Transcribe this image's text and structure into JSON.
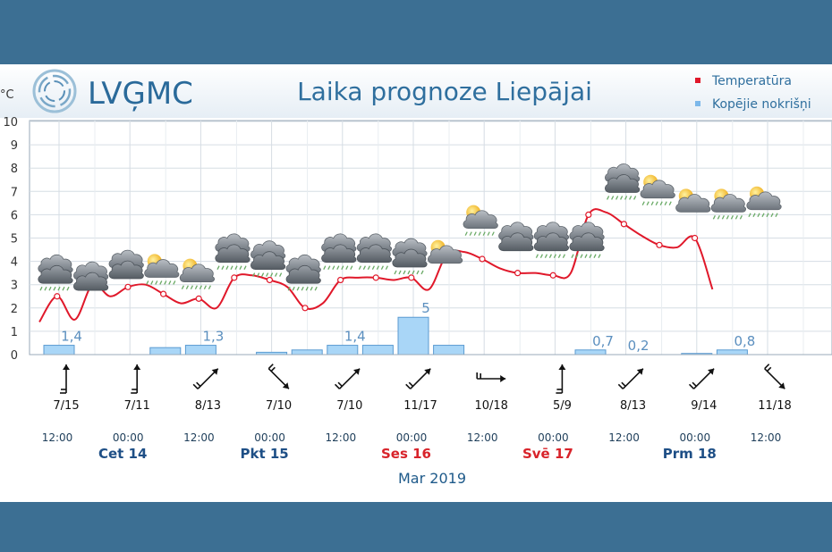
{
  "header": {
    "logo_text": "LVĢMC",
    "title": "Laika prognoze Liepājai"
  },
  "chart_data": {
    "type": "line",
    "title": "Laika prognoze Liepājai",
    "ylabel": "°C",
    "ylim": [
      0,
      10
    ],
    "yticks": [
      "0",
      "1",
      "2",
      "3",
      "4",
      "5",
      "6",
      "7",
      "8",
      "9",
      "10"
    ],
    "grid": true,
    "legend_position": "top-right",
    "colors": {
      "temperature": "#e0182a",
      "precipitation": "#a9d6f7",
      "precip_border": "#5b9bd1"
    },
    "series": [
      {
        "name": "Temperatūra",
        "kind": "line",
        "x_hours": [
          0,
          3,
          6,
          9,
          12,
          15,
          18,
          21,
          24,
          27,
          30,
          33,
          36,
          39,
          42,
          45,
          48,
          51,
          54,
          57,
          60,
          63,
          66,
          69,
          72,
          75,
          78,
          81,
          84,
          87,
          90,
          93,
          96,
          99,
          102,
          105,
          108,
          111,
          114
        ],
        "values": [
          1.4,
          2.5,
          1.5,
          3.0,
          2.5,
          2.9,
          3.0,
          2.6,
          2.2,
          2.4,
          2.0,
          3.3,
          3.4,
          3.2,
          2.9,
          2.0,
          2.2,
          3.2,
          3.3,
          3.3,
          3.2,
          3.3,
          2.8,
          4.3,
          4.4,
          4.1,
          3.7,
          3.5,
          3.5,
          3.4,
          3.5,
          6.0,
          6.1,
          5.6,
          5.1,
          4.7,
          4.6,
          5.0,
          2.8
        ]
      },
      {
        "name": "Kopējie nokrišņi",
        "kind": "bar",
        "x_hours": [
          0,
          6,
          12,
          18,
          24,
          30,
          36,
          42,
          48,
          54,
          60,
          66,
          72,
          78,
          84,
          90,
          96,
          102,
          108,
          114
        ],
        "values": [
          0.4,
          0.0,
          0.0,
          0.3,
          0.4,
          0.0,
          0.1,
          0.2,
          0.4,
          0.4,
          1.6,
          0.4,
          0.0,
          0.0,
          0.0,
          0.2,
          0.0,
          0.0,
          0.05,
          0.2
        ],
        "labels": [
          {
            "x_hour": 0,
            "text": "1,4"
          },
          {
            "x_hour": 24,
            "text": "1,3"
          },
          {
            "x_hour": 48,
            "text": "1,4"
          },
          {
            "x_hour": 60,
            "text": "5"
          },
          {
            "x_hour": 90,
            "text": "0,7"
          },
          {
            "x_hour": 96,
            "text": "0,2"
          },
          {
            "x_hour": 114,
            "text": "0,8"
          }
        ]
      }
    ],
    "weather_icons": [
      {
        "x_hour": 0,
        "y": 3.9,
        "icon": "cloud-drizzle"
      },
      {
        "x_hour": 6,
        "y": 3.6,
        "icon": "cloud"
      },
      {
        "x_hour": 12,
        "y": 4.1,
        "icon": "cloud"
      },
      {
        "x_hour": 18,
        "y": 3.7,
        "icon": "sun-cloud-rain"
      },
      {
        "x_hour": 24,
        "y": 3.5,
        "icon": "sun-cloud-rain"
      },
      {
        "x_hour": 30,
        "y": 4.8,
        "icon": "cloud-rain"
      },
      {
        "x_hour": 36,
        "y": 4.5,
        "icon": "cloud-rain"
      },
      {
        "x_hour": 42,
        "y": 3.9,
        "icon": "cloud-rain"
      },
      {
        "x_hour": 48,
        "y": 4.8,
        "icon": "cloud-rain"
      },
      {
        "x_hour": 54,
        "y": 4.8,
        "icon": "cloud-rain"
      },
      {
        "x_hour": 60,
        "y": 4.6,
        "icon": "cloud-rain"
      },
      {
        "x_hour": 66,
        "y": 4.3,
        "icon": "sun-cloud"
      },
      {
        "x_hour": 72,
        "y": 5.8,
        "icon": "sun-cloud-rain"
      },
      {
        "x_hour": 78,
        "y": 5.3,
        "icon": "cloud"
      },
      {
        "x_hour": 84,
        "y": 5.3,
        "icon": "cloud-rain"
      },
      {
        "x_hour": 90,
        "y": 5.3,
        "icon": "cloud-rain"
      },
      {
        "x_hour": 96,
        "y": 7.8,
        "icon": "cloud-rain"
      },
      {
        "x_hour": 102,
        "y": 7.1,
        "icon": "sun-cloud-rain"
      },
      {
        "x_hour": 108,
        "y": 6.5,
        "icon": "sun-cloud"
      },
      {
        "x_hour": 114,
        "y": 6.5,
        "icon": "sun-cloud-rain"
      },
      {
        "x_hour": 120,
        "y": 6.6,
        "icon": "sun-cloud-rain"
      }
    ],
    "wind": [
      {
        "x_hour": 0,
        "dir": "N",
        "label": "7/15"
      },
      {
        "x_hour": 12,
        "dir": "N",
        "label": "7/11"
      },
      {
        "x_hour": 24,
        "dir": "NE",
        "label": "8/13"
      },
      {
        "x_hour": 36,
        "dir": "SE",
        "label": "7/10"
      },
      {
        "x_hour": 48,
        "dir": "NE",
        "label": "7/10"
      },
      {
        "x_hour": 60,
        "dir": "NE",
        "label": "11/17"
      },
      {
        "x_hour": 72,
        "dir": "E",
        "label": "10/18"
      },
      {
        "x_hour": 84,
        "dir": "N",
        "label": "5/9"
      },
      {
        "x_hour": 96,
        "dir": "NE",
        "label": "8/13"
      },
      {
        "x_hour": 108,
        "dir": "NE",
        "label": "9/14"
      },
      {
        "x_hour": 120,
        "dir": "SE",
        "label": "11/18"
      }
    ],
    "time_ticks": [
      {
        "x_hour": 0,
        "label": "12:00"
      },
      {
        "x_hour": 12,
        "label": "00:00"
      },
      {
        "x_hour": 24,
        "label": "12:00"
      },
      {
        "x_hour": 36,
        "label": "00:00"
      },
      {
        "x_hour": 48,
        "label": "12:00"
      },
      {
        "x_hour": 60,
        "label": "00:00"
      },
      {
        "x_hour": 72,
        "label": "12:00"
      },
      {
        "x_hour": 84,
        "label": "00:00"
      },
      {
        "x_hour": 96,
        "label": "12:00"
      },
      {
        "x_hour": 108,
        "label": "00:00"
      },
      {
        "x_hour": 120,
        "label": "12:00"
      }
    ],
    "days": [
      {
        "x_hour": 12,
        "label": "Cet 14",
        "weekend": false
      },
      {
        "x_hour": 36,
        "label": "Pkt 15",
        "weekend": false
      },
      {
        "x_hour": 60,
        "label": "Ses 16",
        "weekend": true
      },
      {
        "x_hour": 84,
        "label": "Svē 17",
        "weekend": true
      },
      {
        "x_hour": 108,
        "label": "Prm 18",
        "weekend": false
      }
    ],
    "month_label": "Mar 2019"
  }
}
